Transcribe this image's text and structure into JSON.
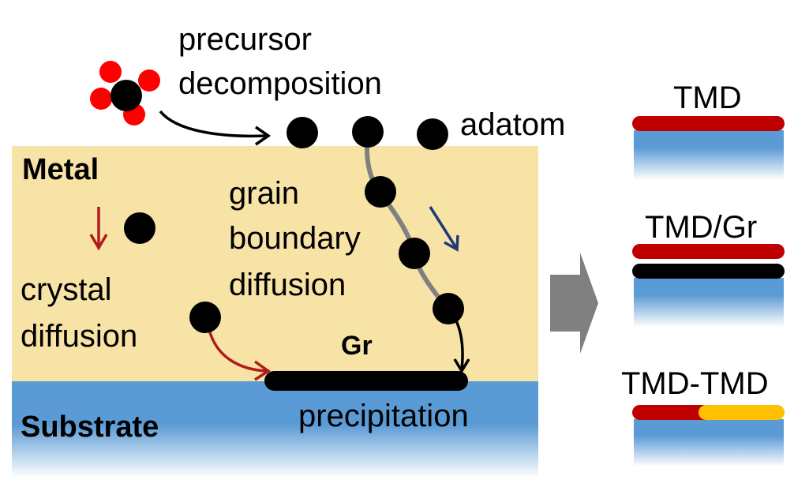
{
  "labels": {
    "precursor_line1": "precursor",
    "precursor_line2": "decomposition",
    "adatom": "adatom",
    "metal": "Metal",
    "grain_line1": "grain",
    "grain_line2": "boundary",
    "grain_line3": "diffusion",
    "crystal_line1": "crystal",
    "crystal_line2": "diffusion",
    "gr": "Gr",
    "substrate": "Substrate",
    "precipitation": "precipitation",
    "tmd": "TMD",
    "tmd_gr": "TMD/Gr",
    "tmd_tmd": "TMD-TMD"
  },
  "colors": {
    "metal": "#f8e3a6",
    "substrate": "#5b9bd5",
    "tmd_layer": "#c00000",
    "graphene": "#000000",
    "second_tmd": "#ffc000",
    "red_arrow": "#b01c1c",
    "blue_arrow": "#1f3a7a",
    "grain_boundary": "#808080",
    "process_arrow": "#808080",
    "oxygen_atom": "#ff0000"
  }
}
